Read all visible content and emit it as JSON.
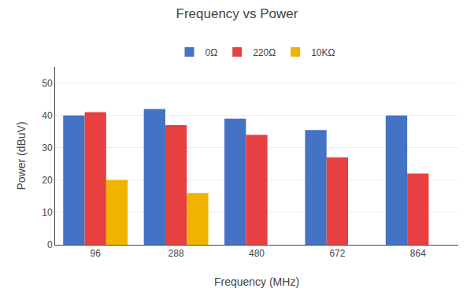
{
  "chart_data": {
    "type": "bar",
    "title": "Frequency vs Power",
    "xlabel": "Frequency (MHz)",
    "ylabel": "Power (dBuV)",
    "categories": [
      96,
      288,
      480,
      672,
      864
    ],
    "series": [
      {
        "name": "0Ω",
        "color": "#4472C4",
        "values": [
          40,
          42,
          39,
          35.5,
          40
        ]
      },
      {
        "name": "220Ω",
        "color": "#E84040",
        "values": [
          41,
          37,
          34,
          27,
          22
        ]
      },
      {
        "name": "10KΩ",
        "color": "#F0B400",
        "values": [
          20,
          16,
          null,
          null,
          null
        ]
      }
    ],
    "ylim": [
      0,
      55
    ],
    "yticks": [
      0,
      10,
      20,
      30,
      40,
      50
    ],
    "grid": true,
    "legend": "top"
  }
}
